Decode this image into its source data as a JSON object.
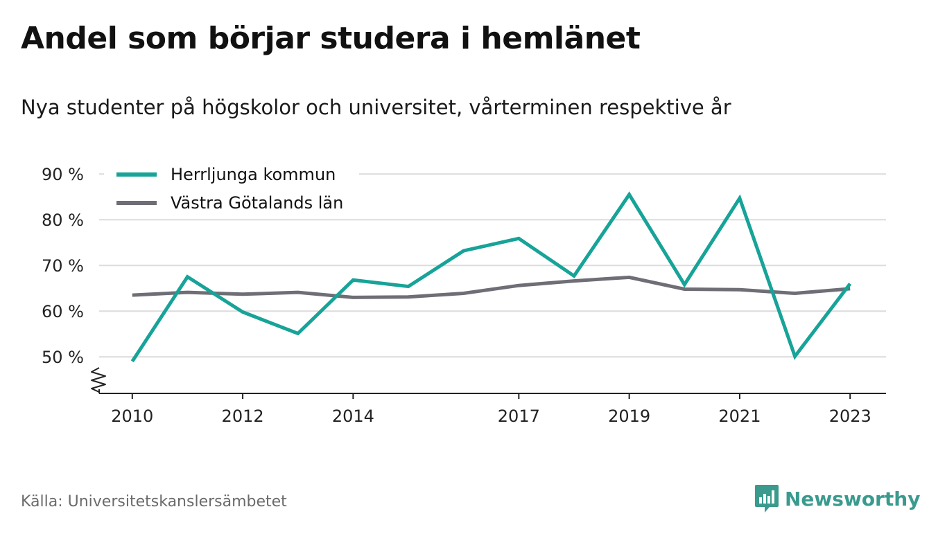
{
  "header": {
    "title": "Andel som börjar studera i hemlänet",
    "subtitle": "Nya studenter på högskolor och universitet, vårterminen respektive år"
  },
  "footer": {
    "source": "Källa: Universitetskanslersämbetet",
    "brand": "Newsworthy",
    "brand_color": "#3a9a8e"
  },
  "chart_data": {
    "type": "line",
    "x": [
      2010,
      2011,
      2012,
      2013,
      2014,
      2015,
      2016,
      2017,
      2018,
      2019,
      2020,
      2021,
      2022,
      2023
    ],
    "x_tick_labels": [
      "2010",
      "2012",
      "2014",
      "2017",
      "2019",
      "2021",
      "2023"
    ],
    "y_tick_labels": [
      "50 %",
      "60 %",
      "70 %",
      "80 %",
      "90 %"
    ],
    "y_ticks": [
      50,
      60,
      70,
      80,
      90
    ],
    "ylim": [
      42,
      92
    ],
    "xlim": [
      2009.4,
      2023.65
    ],
    "y_axis_break": true,
    "grid": true,
    "legend_position": "top-left",
    "series": [
      {
        "name": "Herrljunga kommun",
        "color": "#17a398",
        "values": [
          49,
          67.5,
          59.8,
          55.1,
          66.8,
          65.4,
          73.2,
          75.9,
          67.7,
          85.5,
          65.8,
          84.7,
          50.1,
          66.0
        ]
      },
      {
        "name": "Västra Götalands län",
        "color": "#6f6e76",
        "values": [
          63.5,
          64.1,
          63.7,
          64.1,
          63.0,
          63.1,
          63.9,
          65.6,
          66.6,
          67.4,
          64.8,
          64.7,
          63.9,
          64.9
        ]
      }
    ]
  }
}
